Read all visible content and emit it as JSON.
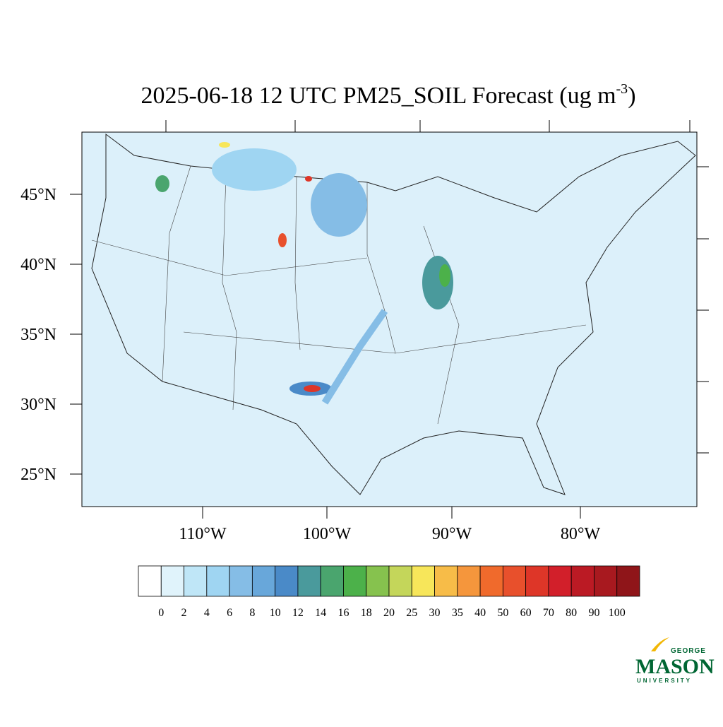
{
  "header": {
    "title": "2025-06-18 12 UTC PM25_SOIL Forecast (ug m",
    "title_superscript": "-3",
    "title_end": ")"
  },
  "map": {
    "lat_labels": [
      "45°N",
      "40°N",
      "35°N",
      "30°N",
      "25°N"
    ],
    "lon_labels": [
      "110°W",
      "100°W",
      "90°W",
      "80°W"
    ]
  },
  "colorbar": {
    "labels": [
      0,
      2,
      4,
      6,
      8,
      10,
      12,
      14,
      16,
      18,
      20,
      25,
      30,
      35,
      40,
      50,
      60,
      70,
      80,
      90,
      100
    ],
    "colors": [
      "#ffffff",
      "#e0f3fb",
      "#bfe6f7",
      "#9fd5f2",
      "#85bde6",
      "#68a7da",
      "#4a8ac8",
      "#4a9a9c",
      "#4aa56e",
      "#4cb14a",
      "#86c24e",
      "#c4d65a",
      "#f7e65a",
      "#f7bc48",
      "#f5963c",
      "#f06a2c",
      "#e8502c",
      "#de3628",
      "#d21f2a",
      "#bb1a24",
      "#a8191f",
      "#8f1519"
    ]
  },
  "logo": {
    "top": "GEORGE",
    "main": "MASON",
    "bottom": "UNIVERSITY"
  }
}
